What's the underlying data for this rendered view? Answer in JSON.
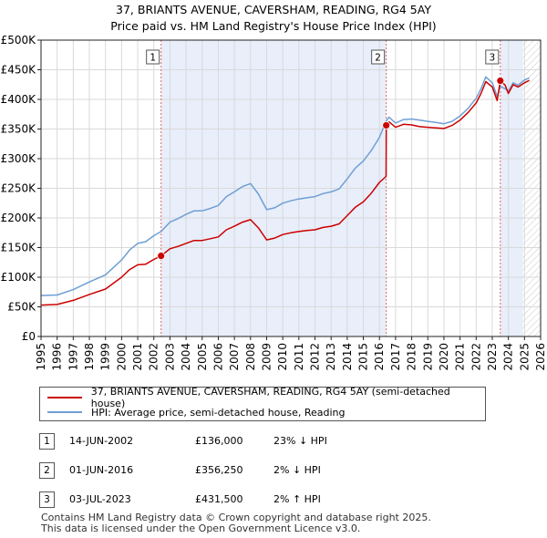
{
  "title_line1": "37, BRIANTS AVENUE, CAVERSHAM, READING, RG4 5AY",
  "title_line2": "Price paid vs. HM Land Registry's House Price Index (HPI)",
  "chart_data": {
    "type": "line",
    "ylim": [
      0,
      500000
    ],
    "xlim": [
      1995,
      2026
    ],
    "y_ticks": [
      {
        "value": 0,
        "label": "£0"
      },
      {
        "value": 50000,
        "label": "£50K"
      },
      {
        "value": 100000,
        "label": "£100K"
      },
      {
        "value": 150000,
        "label": "£150K"
      },
      {
        "value": 200000,
        "label": "£200K"
      },
      {
        "value": 250000,
        "label": "£250K"
      },
      {
        "value": 300000,
        "label": "£300K"
      },
      {
        "value": 350000,
        "label": "£350K"
      },
      {
        "value": 400000,
        "label": "£400K"
      },
      {
        "value": 450000,
        "label": "£450K"
      },
      {
        "value": 500000,
        "label": "£500K"
      }
    ],
    "x_ticks": [
      1995,
      1996,
      1997,
      1998,
      1999,
      2000,
      2001,
      2002,
      2003,
      2004,
      2005,
      2006,
      2007,
      2008,
      2009,
      2010,
      2011,
      2012,
      2013,
      2014,
      2015,
      2016,
      2017,
      2018,
      2019,
      2020,
      2021,
      2022,
      2023,
      2024,
      2025,
      2026
    ],
    "shaded_ranges": [
      [
        2002.45,
        2016.42
      ],
      [
        2023.5,
        2024.9
      ]
    ],
    "hatched_range": [
      2024.9,
      2026
    ],
    "series": [
      {
        "name": "37, BRIANTS AVENUE, CAVERSHAM, READING, RG4 5AY (semi-detached house)",
        "color": "#cc0000",
        "x": [
          1995.0,
          1996.0,
          1997.0,
          1998.0,
          1999.0,
          2000.0,
          2000.5,
          2001.0,
          2001.5,
          2002.0,
          2002.45,
          2003.0,
          2003.5,
          2004.0,
          2004.5,
          2005.0,
          2005.5,
          2006.0,
          2006.5,
          2007.0,
          2007.5,
          2008.0,
          2008.5,
          2009.0,
          2009.5,
          2010.0,
          2010.5,
          2011.0,
          2011.5,
          2012.0,
          2012.5,
          2013.0,
          2013.5,
          2014.0,
          2014.5,
          2015.0,
          2015.5,
          2016.0,
          2016.41,
          2016.42,
          2016.6,
          2017.0,
          2017.5,
          2018.0,
          2018.5,
          2019.0,
          2019.5,
          2020.0,
          2020.5,
          2021.0,
          2021.5,
          2022.0,
          2022.3,
          2022.6,
          2023.0,
          2023.3,
          2023.5,
          2023.8,
          2024.0,
          2024.3,
          2024.6,
          2025.0,
          2025.3
        ],
        "y": [
          53000,
          54000,
          61000,
          71000,
          80000,
          100000,
          113000,
          121000,
          122000,
          130000,
          136000,
          148000,
          152000,
          157000,
          162000,
          162000,
          165000,
          168000,
          180000,
          186000,
          193000,
          197000,
          183000,
          163000,
          166000,
          172000,
          175000,
          177000,
          179000,
          180000,
          184000,
          186000,
          190000,
          204000,
          218000,
          227000,
          242000,
          260000,
          270000,
          356250,
          362000,
          353000,
          358000,
          357000,
          354000,
          353000,
          352000,
          351000,
          356000,
          365000,
          378000,
          394000,
          410000,
          430000,
          421000,
          398000,
          431500,
          424000,
          410000,
          425000,
          421000,
          428000,
          432000
        ]
      },
      {
        "name": "HPI: Average price, semi-detached house, Reading",
        "color": "#6e9fd4",
        "x": [
          1995.0,
          1996.0,
          1997.0,
          1998.0,
          1999.0,
          2000.0,
          2000.5,
          2001.0,
          2001.5,
          2002.0,
          2002.45,
          2003.0,
          2003.5,
          2004.0,
          2004.5,
          2005.0,
          2005.5,
          2006.0,
          2006.5,
          2007.0,
          2007.5,
          2008.0,
          2008.5,
          2009.0,
          2009.5,
          2010.0,
          2010.5,
          2011.0,
          2011.5,
          2012.0,
          2012.5,
          2013.0,
          2013.5,
          2014.0,
          2014.5,
          2015.0,
          2015.5,
          2016.0,
          2016.42,
          2016.6,
          2017.0,
          2017.5,
          2018.0,
          2018.5,
          2019.0,
          2019.5,
          2020.0,
          2020.5,
          2021.0,
          2021.5,
          2022.0,
          2022.3,
          2022.6,
          2023.0,
          2023.3,
          2023.5,
          2023.8,
          2024.0,
          2024.3,
          2024.6,
          2025.0,
          2025.3
        ],
        "y": [
          69000,
          70000,
          79000,
          92000,
          104000,
          129000,
          146000,
          157000,
          160000,
          170000,
          177000,
          193000,
          199000,
          206000,
          212000,
          212000,
          216000,
          221000,
          236000,
          244000,
          253000,
          258000,
          240000,
          214000,
          217000,
          225000,
          229000,
          232000,
          234000,
          236000,
          241000,
          244000,
          249000,
          266000,
          284000,
          296000,
          314000,
          336000,
          364000,
          370000,
          360000,
          366000,
          367000,
          365000,
          363000,
          361000,
          359000,
          363000,
          372000,
          385000,
          402000,
          418000,
          438000,
          428000,
          405000,
          422000,
          418000,
          414000,
          428000,
          424000,
          433000,
          436000
        ]
      }
    ],
    "transactions": [
      {
        "label": "1",
        "x": 2002.45,
        "y": 136000
      },
      {
        "label": "2",
        "x": 2016.42,
        "y": 356250
      },
      {
        "label": "3",
        "x": 2023.5,
        "y": 431500
      }
    ]
  },
  "legend": {
    "property_label": "37, BRIANTS AVENUE, CAVERSHAM, READING, RG4 5AY (semi-detached house)",
    "hpi_label": "HPI: Average price, semi-detached house, Reading",
    "property_color": "#cc0000",
    "hpi_color": "#6e9fd4"
  },
  "table": [
    {
      "num": "1",
      "date": "14-JUN-2002",
      "price": "£136,000",
      "hpi": "23% ↓ HPI"
    },
    {
      "num": "2",
      "date": "01-JUN-2016",
      "price": "£356,250",
      "hpi": "2% ↓ HPI"
    },
    {
      "num": "3",
      "date": "03-JUL-2023",
      "price": "£431,500",
      "hpi": "2% ↑ HPI"
    }
  ],
  "footer_line1": "Contains HM Land Registry data © Crown copyright and database right 2025.",
  "footer_line2": "This data is licensed under the Open Government Licence v3.0."
}
